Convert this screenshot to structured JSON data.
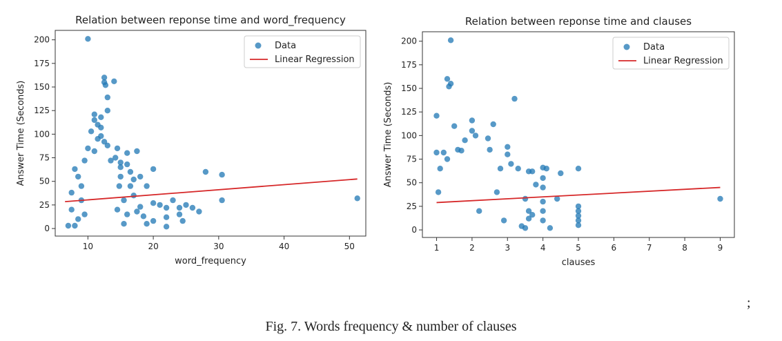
{
  "caption": "Fig. 7. Words frequency & number of clauses",
  "trailing_mark": ";",
  "colors": {
    "data": "#1f77b4",
    "regression": "#d62728"
  },
  "chart_data": [
    {
      "type": "scatter",
      "title": "Relation between reponse time and word_frequency",
      "xlabel": "word_frequency",
      "ylabel": "Answer Time (Seconds)",
      "xlim": [
        5,
        52.5
      ],
      "ylim": [
        -8,
        210
      ],
      "xticks": [
        10,
        20,
        30,
        40,
        50
      ],
      "yticks": [
        0,
        25,
        50,
        75,
        100,
        125,
        150,
        175,
        200
      ],
      "legend": {
        "placement": "top-right",
        "entries": [
          "Data",
          "Linear Regression"
        ]
      },
      "regression": {
        "name": "Linear Regression",
        "x": [
          6.5,
          51.2
        ],
        "y": [
          28.5,
          52.5
        ]
      },
      "series": [
        {
          "name": "Data",
          "points": [
            [
              10,
              201
            ],
            [
              12.5,
              160
            ],
            [
              12.5,
              155
            ],
            [
              12.7,
              152
            ],
            [
              14,
              156
            ],
            [
              13,
              139
            ],
            [
              11,
              121
            ],
            [
              11,
              115
            ],
            [
              11.5,
              110
            ],
            [
              12,
              107
            ],
            [
              10.5,
              103
            ],
            [
              11.5,
              95
            ],
            [
              12,
              98
            ],
            [
              13,
              88
            ],
            [
              12.5,
              92
            ],
            [
              10,
              85
            ],
            [
              11,
              82
            ],
            [
              14.5,
              85
            ],
            [
              16,
              80
            ],
            [
              17.5,
              82
            ],
            [
              14.2,
              75
            ],
            [
              15,
              70
            ],
            [
              16,
              68
            ],
            [
              13.5,
              72
            ],
            [
              15,
              65
            ],
            [
              16.5,
              60
            ],
            [
              17,
              52
            ],
            [
              18,
              55
            ],
            [
              19,
              45
            ],
            [
              20,
              63
            ],
            [
              20,
              27
            ],
            [
              21,
              25
            ],
            [
              22,
              22
            ],
            [
              23,
              30
            ],
            [
              24,
              22
            ],
            [
              25,
              25
            ],
            [
              24,
              15
            ],
            [
              26,
              22
            ],
            [
              27,
              18
            ],
            [
              28,
              60
            ],
            [
              30.5,
              57
            ],
            [
              30.5,
              30
            ],
            [
              18,
              23
            ],
            [
              18.5,
              13
            ],
            [
              19,
              5
            ],
            [
              20,
              8
            ],
            [
              22,
              12
            ],
            [
              24.5,
              8
            ],
            [
              22,
              2
            ],
            [
              51.2,
              32
            ],
            [
              7,
              3
            ],
            [
              7.5,
              20
            ],
            [
              7.5,
              38
            ],
            [
              8,
              63
            ],
            [
              8.5,
              55
            ],
            [
              8,
              3
            ],
            [
              9,
              45
            ],
            [
              9,
              30
            ],
            [
              8.5,
              10
            ],
            [
              15.5,
              30
            ],
            [
              15.5,
              5
            ],
            [
              16,
              15
            ],
            [
              17,
              35
            ],
            [
              16.5,
              45
            ],
            [
              13,
              125
            ],
            [
              12,
              118
            ],
            [
              9.5,
              72
            ],
            [
              9.5,
              15
            ],
            [
              14.8,
              45
            ],
            [
              14.5,
              20
            ],
            [
              15,
              55
            ],
            [
              17.5,
              18
            ]
          ]
        }
      ]
    },
    {
      "type": "scatter",
      "title": "Relation between reponse time and clauses",
      "xlabel": "clauses",
      "ylabel": "Answer Time (Seconds)",
      "xlim": [
        0.6,
        9.4
      ],
      "ylim": [
        -8,
        210
      ],
      "xticks": [
        1,
        2,
        3,
        4,
        5,
        6,
        7,
        8,
        9
      ],
      "yticks": [
        0,
        25,
        50,
        75,
        100,
        125,
        150,
        175,
        200
      ],
      "legend": {
        "placement": "top-right",
        "entries": [
          "Data",
          "Linear Regression"
        ]
      },
      "regression": {
        "name": "Linear Regression",
        "x": [
          1,
          9
        ],
        "y": [
          29,
          45
        ]
      },
      "series": [
        {
          "name": "Data",
          "points": [
            [
              1.4,
              201
            ],
            [
              1.3,
              160
            ],
            [
              1.4,
              155
            ],
            [
              1.35,
              152
            ],
            [
              3.2,
              139
            ],
            [
              1,
              121
            ],
            [
              1.5,
              110
            ],
            [
              2,
              116
            ],
            [
              2.6,
              112
            ],
            [
              2,
              105
            ],
            [
              1.8,
              95
            ],
            [
              2.5,
              85
            ],
            [
              2.1,
              100
            ],
            [
              1.6,
              85
            ],
            [
              1.7,
              84
            ],
            [
              3,
              88
            ],
            [
              1.2,
              82
            ],
            [
              1,
              82
            ],
            [
              1.3,
              75
            ],
            [
              3.3,
              65
            ],
            [
              3.6,
              62
            ],
            [
              3.7,
              62
            ],
            [
              4,
              66
            ],
            [
              4.1,
              65
            ],
            [
              4.5,
              60
            ],
            [
              5,
              65
            ],
            [
              4,
              55
            ],
            [
              4,
              45
            ],
            [
              4.4,
              33
            ],
            [
              3.8,
              48
            ],
            [
              3.5,
              33
            ],
            [
              3.6,
              20
            ],
            [
              3.7,
              16
            ],
            [
              3.4,
              4
            ],
            [
              3.5,
              2
            ],
            [
              3.6,
              12
            ],
            [
              4,
              10
            ],
            [
              4,
              20
            ],
            [
              4,
              30
            ],
            [
              4.2,
              2
            ],
            [
              5,
              25
            ],
            [
              5,
              20
            ],
            [
              5,
              15
            ],
            [
              5,
              10
            ],
            [
              5,
              5
            ],
            [
              9,
              33
            ],
            [
              2.8,
              65
            ],
            [
              2.9,
              10
            ],
            [
              3,
              80
            ],
            [
              2.45,
              97
            ],
            [
              2.2,
              20
            ],
            [
              1.1,
              65
            ],
            [
              1.05,
              40
            ],
            [
              2.7,
              40
            ],
            [
              3.1,
              70
            ]
          ]
        }
      ]
    }
  ]
}
